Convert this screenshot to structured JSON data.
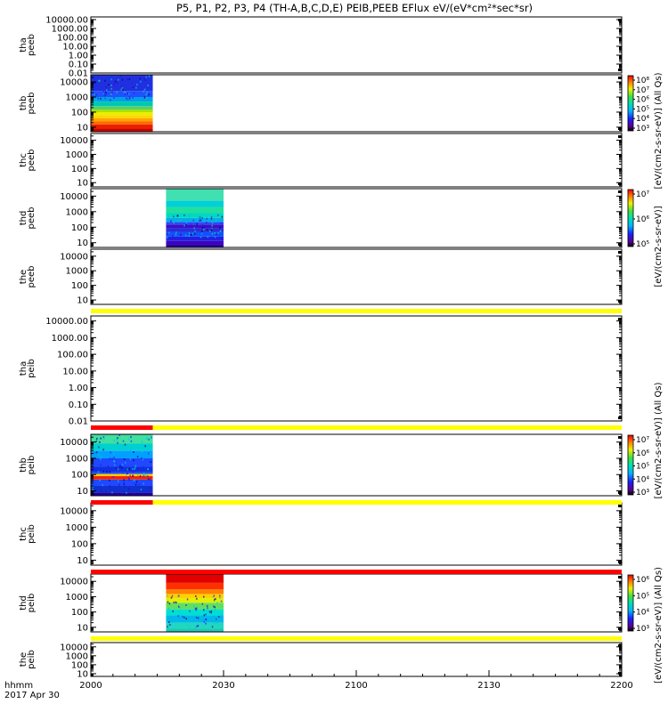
{
  "title": "P5, P1, P2, P3, P4 (TH-A,B,C,D,E) PEIB,PEEB EFlux eV/(eV*cm²*sec*sr)",
  "xaxis": {
    "label_line1": "hhmm",
    "label_line2": "2017 Apr 30",
    "ticks": [
      "2000",
      "2030",
      "2100",
      "2130",
      "2200"
    ]
  },
  "chart_data": {
    "type": "heatmap",
    "title": "P5, P1, P2, P3, P4 (TH-A,B,C,D,E) PEIB,PEEB EFlux eV/(eV*cm²*sec*sr)",
    "x_range": [
      "20:00",
      "22:00"
    ],
    "y_scale": "log",
    "colormap": "rainbow (black-purple-blue-cyan-green-yellow-red)",
    "panels": [
      {
        "name": "tha peeb",
        "ylabel": [
          "tha",
          "peeb"
        ],
        "ylim": [
          0.01,
          20000
        ],
        "yticks": [
          "10000.00",
          "1000.00",
          "100.00",
          "10.00",
          "1.00",
          "0.10",
          "0.01"
        ],
        "data": [],
        "flags": [],
        "colorbar": null
      },
      {
        "name": "thb peeb",
        "ylabel": [
          "thb",
          "peeb"
        ],
        "ylim": [
          5,
          30000
        ],
        "yticks": [
          "10000",
          "1000",
          "100",
          "10"
        ],
        "data": [
          {
            "t_start": "20:00",
            "t_end": "20:14",
            "profile": [
              [
                8,
                "#cc0000"
              ],
              [
                15,
                "#e82000"
              ],
              [
                25,
                "#ff6a00"
              ],
              [
                40,
                "#ffa500"
              ],
              [
                65,
                "#ffd700"
              ],
              [
                100,
                "#e8f000"
              ],
              [
                150,
                "#a8e000"
              ],
              [
                250,
                "#50d070"
              ],
              [
                500,
                "#00c8b0"
              ],
              [
                1000,
                "#00a0e8"
              ],
              [
                2500,
                "#2050ff"
              ],
              [
                30000,
                "#2030e0"
              ]
            ],
            "noise": "upper"
          }
        ],
        "flags": [],
        "colorbar": {
          "unit": "(All Qs)",
          "ticks": [
            "10⁸",
            "10⁷",
            "10⁶",
            "10⁵",
            "10⁴",
            "10³"
          ]
        }
      },
      {
        "name": "thc peeb",
        "ylabel": [
          "thc",
          "peeb"
        ],
        "ylim": [
          5,
          30000
        ],
        "yticks": [
          "10000",
          "1000",
          "100",
          "10"
        ],
        "data": [],
        "flags": [],
        "colorbar": null
      },
      {
        "name": "thd peeb",
        "ylabel": [
          "thd",
          "peeb"
        ],
        "ylim": [
          5,
          30000
        ],
        "yticks": [
          "10000",
          "1000",
          "100",
          "10"
        ],
        "data": [
          {
            "t_start": "20:17",
            "t_end": "20:30",
            "profile": [
              [
                8,
                "#2a00a0"
              ],
              [
                13,
                "#4000c0"
              ],
              [
                25,
                "#2020e0"
              ],
              [
                50,
                "#1050ff"
              ],
              [
                90,
                "#2c2cd8"
              ],
              [
                150,
                "#3a10c8"
              ],
              [
                220,
                "#2a4aff"
              ],
              [
                400,
                "#00b0e0"
              ],
              [
                800,
                "#00d8c0"
              ],
              [
                2000,
                "#20e0a0"
              ],
              [
                5000,
                "#00d0d8"
              ],
              [
                30000,
                "#40e0b0"
              ]
            ],
            "noise": "center"
          }
        ],
        "flags": [],
        "colorbar": {
          "unit": "",
          "ticks": [
            "10⁷",
            "10⁶",
            "10⁵"
          ]
        }
      },
      {
        "name": "the peeb",
        "ylabel": [
          "the",
          "peeb"
        ],
        "ylim": [
          5,
          30000
        ],
        "yticks": [
          "10000",
          "1000",
          "100",
          "10"
        ],
        "data": [],
        "flags": [
          {
            "position": "below",
            "color": "#ffff00",
            "t_start": "20:00",
            "t_end": "22:00"
          }
        ],
        "colorbar": null
      },
      {
        "name": "tha peib",
        "ylabel": [
          "tha",
          "peib"
        ],
        "ylim": [
          0.01,
          20000
        ],
        "yticks": [
          "10000.00",
          "1000.00",
          "100.00",
          "10.00",
          "1.00",
          "0.10",
          "0.01"
        ],
        "data": [],
        "flags": [
          {
            "position": "below",
            "color": "#ff0000",
            "t_start": "20:00",
            "t_end": "20:14"
          },
          {
            "position": "below",
            "color": "#ffff00",
            "t_start": "20:14",
            "t_end": "22:00"
          }
        ],
        "colorbar": null
      },
      {
        "name": "thb peib",
        "ylabel": [
          "thb",
          "peib"
        ],
        "ylim": [
          5,
          30000
        ],
        "yticks": [
          "10000",
          "1000",
          "100",
          "10"
        ],
        "data": [
          {
            "t_start": "20:00",
            "t_end": "20:14",
            "profile": [
              [
                8,
                "#2000a0"
              ],
              [
                20,
                "#1030d0"
              ],
              [
                50,
                "#2048ff"
              ],
              [
                80,
                "#ff2000"
              ],
              [
                110,
                "#ffd000"
              ],
              [
                150,
                "#2048ff"
              ],
              [
                300,
                "#1030e0"
              ],
              [
                1000,
                "#2048ff"
              ],
              [
                3000,
                "#00a0ff"
              ],
              [
                8000,
                "#00d0d0"
              ],
              [
                30000,
                "#40e0a0"
              ]
            ],
            "noise": "all"
          }
        ],
        "flags": [
          {
            "position": "below",
            "color": "#ff0000",
            "t_start": "20:00",
            "t_end": "20:14"
          },
          {
            "position": "below",
            "color": "#ffff00",
            "t_start": "20:14",
            "t_end": "22:00"
          }
        ],
        "colorbar": {
          "unit": "(All Qs)",
          "ticks": [
            "10⁷",
            "10⁶",
            "10⁵",
            "10⁴",
            "10³"
          ]
        }
      },
      {
        "name": "thc peib",
        "ylabel": [
          "thc",
          "peib"
        ],
        "ylim": [
          5,
          30000
        ],
        "yticks": [
          "10000",
          "1000",
          "100",
          "10"
        ],
        "data": [],
        "flags": [
          {
            "position": "below",
            "color": "#ff0000",
            "t_start": "20:00",
            "t_end": "22:00"
          }
        ],
        "colorbar": null
      },
      {
        "name": "thd peib",
        "ylabel": [
          "thd",
          "peib"
        ],
        "ylim": [
          5,
          30000
        ],
        "yticks": [
          "10000",
          "1000",
          "100",
          "10"
        ],
        "data": [
          {
            "t_start": "20:17",
            "t_end": "20:30",
            "profile": [
              [
                8,
                "#20c8b0"
              ],
              [
                20,
                "#20d8c0"
              ],
              [
                60,
                "#00b8e8"
              ],
              [
                150,
                "#00e0d0"
              ],
              [
                400,
                "#60e060"
              ],
              [
                800,
                "#e0f000"
              ],
              [
                1500,
                "#ffd000"
              ],
              [
                3000,
                "#ff8000"
              ],
              [
                8000,
                "#ff3000"
              ],
              [
                30000,
                "#e00000"
              ]
            ],
            "noise": "low"
          }
        ],
        "flags": [
          {
            "position": "below",
            "color": "#ffff00",
            "t_start": "20:00",
            "t_end": "22:00"
          }
        ],
        "colorbar": {
          "unit": "(All Qs)",
          "ticks": [
            "10⁶",
            "10⁵",
            "10⁴",
            "10³"
          ]
        }
      },
      {
        "name": "the peib",
        "ylabel": [
          "the",
          "peib"
        ],
        "ylim": [
          5,
          30000
        ],
        "yticks": [
          "10000",
          "1000",
          "100",
          "10"
        ],
        "data": [],
        "flags": [],
        "colorbar": null
      }
    ],
    "side_labels": [
      {
        "text": "[eV/(cm2-s-sr-eV)] (All Qs)",
        "panel_top": 1,
        "panel_bottom": 2,
        "mode": "stacked"
      },
      {
        "text": "[eV/(cm2-s-sr-eV)]",
        "panel_top": 3,
        "panel_bottom": 4
      },
      {
        "text": "[eV/(cm2-s-sr-eV)] (All Qs)",
        "panel_top": 5,
        "panel_bottom": 7,
        "mode": "stacked"
      },
      {
        "text": "[eV/(cm2-s-sr-eV)] (All Qs)",
        "panel_top": 8,
        "panel_bottom": 9
      }
    ]
  }
}
